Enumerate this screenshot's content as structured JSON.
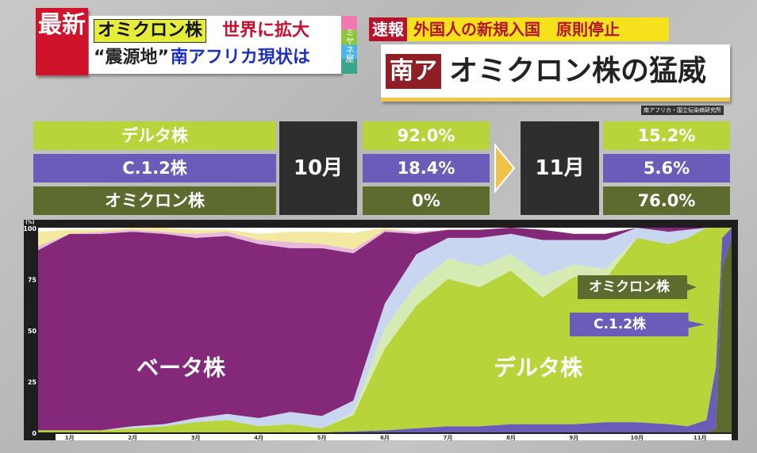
{
  "header": {
    "breaking_badge": "最新",
    "line1_tag": "オミクロン株",
    "line1_text": "世界に拡大",
    "line2_quote": "“震源地”",
    "line2_text": "南アフリカ現状は",
    "program_logo": "ミヤネ屋",
    "flash_badge": "速報",
    "flash_text": "外国人の新規入国　原則停止",
    "title_tag": "南ア",
    "title": "オミクロン株の猛威",
    "source": "南アフリカ・国立伝染病研究所"
  },
  "table": {
    "month_before": "10月",
    "month_after": "11月",
    "rows": [
      {
        "label": "デルタ株",
        "before": "92.0%",
        "after": "15.2%",
        "color": "#b7d43a"
      },
      {
        "label": "C.1.2株",
        "before": "18.4%",
        "after": "5.6%",
        "color": "#6a5cb8"
      },
      {
        "label": "オミクロン株",
        "before": "0%",
        "after": "76.0%",
        "color": "#5c6b2e"
      }
    ]
  },
  "chart_data": {
    "type": "area",
    "stacked": true,
    "ylabel": "(%)",
    "ylim": [
      0,
      100
    ],
    "yticks": [
      "0",
      "25",
      "50",
      "75",
      "100"
    ],
    "xlim": [
      0,
      11
    ],
    "categories": [
      "1月",
      "2月",
      "3月",
      "4月",
      "5月",
      "6月",
      "7月",
      "8月",
      "9月",
      "10月",
      "11月"
    ],
    "x": [
      0,
      0.5,
      1,
      1.5,
      2,
      2.5,
      3,
      3.5,
      4,
      4.5,
      5,
      5.5,
      6,
      6.5,
      7,
      7.5,
      8,
      8.5,
      9,
      9.5,
      10,
      10.3,
      10.6,
      10.75,
      10.85,
      11
    ],
    "series": [
      {
        "name": "オミクロン株",
        "color": "#5c6b2e",
        "values": [
          0,
          0,
          0,
          0,
          0,
          0,
          0,
          0,
          0,
          0,
          0,
          0,
          0,
          0,
          0,
          0,
          0,
          0,
          0,
          0,
          0,
          0,
          0,
          2,
          80,
          95
        ]
      },
      {
        "name": "C.1.2株",
        "color": "#6a5cb8",
        "values": [
          0,
          0,
          0,
          0,
          0,
          0,
          0,
          0,
          0,
          0,
          0.5,
          1,
          2,
          3,
          3,
          4,
          4,
          4,
          5,
          5,
          4,
          3,
          6,
          30,
          15,
          5
        ]
      },
      {
        "name": "デルタ株",
        "color": "#b7d43a",
        "values": [
          1,
          1,
          1,
          2,
          3,
          5,
          6,
          3,
          4,
          2,
          8,
          40,
          60,
          72,
          68,
          75,
          62,
          72,
          70,
          90,
          88,
          92,
          94,
          68,
          5,
          0
        ]
      },
      {
        "name": "other-1",
        "color": "#d6ebb4",
        "values": [
          0,
          0,
          0,
          0,
          0,
          0,
          0,
          0,
          0,
          0,
          1,
          10,
          10,
          10,
          10,
          8,
          10,
          6,
          5,
          0,
          0,
          0,
          0,
          0,
          0,
          0
        ]
      },
      {
        "name": "other-2",
        "color": "#c9d6f0",
        "values": [
          0,
          0,
          0,
          1,
          1,
          2,
          3,
          4,
          6,
          6,
          6,
          12,
          15,
          10,
          14,
          10,
          18,
          12,
          14,
          5,
          6,
          4,
          0,
          0,
          0,
          0
        ]
      },
      {
        "name": "ベータ株",
        "color": "#84297a",
        "values": [
          88,
          96,
          96,
          95,
          93,
          88,
          87,
          85,
          80,
          82,
          72,
          35,
          10,
          4,
          4,
          3,
          5,
          3,
          3,
          0,
          2,
          1,
          0,
          0,
          0,
          0
        ]
      },
      {
        "name": "other-3",
        "color": "#e9b9dc",
        "values": [
          2,
          0,
          1,
          1,
          1,
          2,
          2,
          2,
          3,
          2,
          2,
          1,
          1,
          0,
          0,
          0,
          0,
          0,
          0,
          0,
          0,
          0,
          0,
          0,
          0,
          0
        ]
      },
      {
        "name": "other-4",
        "color": "#f3e9a0",
        "values": [
          7,
          2,
          1,
          1,
          2,
          2,
          1,
          3,
          5,
          6,
          8,
          1,
          0,
          0,
          0,
          0,
          0,
          0,
          0,
          0,
          0,
          0,
          0,
          0,
          0,
          0
        ]
      }
    ],
    "annotations": [
      "ベータ株",
      "デルタ株",
      "オミクロン株",
      "C.1.2株"
    ]
  }
}
